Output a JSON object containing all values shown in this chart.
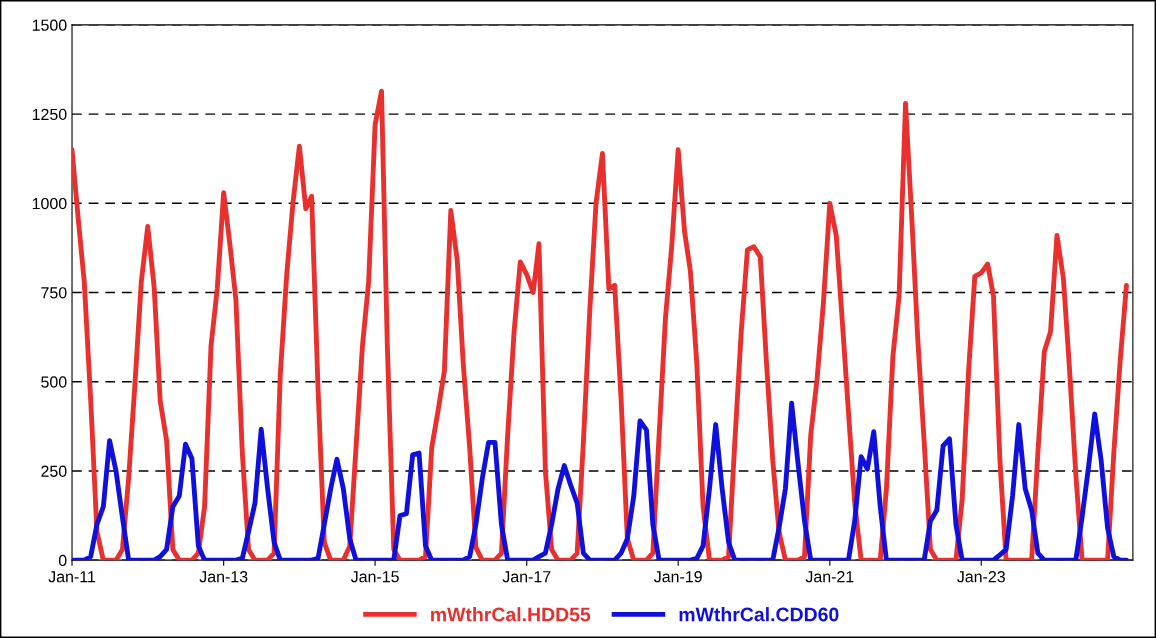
{
  "chart_data": {
    "type": "line",
    "x": [
      "2011-01",
      "2011-02",
      "2011-03",
      "2011-04",
      "2011-05",
      "2011-06",
      "2011-07",
      "2011-08",
      "2011-09",
      "2011-10",
      "2011-11",
      "2011-12",
      "2012-01",
      "2012-02",
      "2012-03",
      "2012-04",
      "2012-05",
      "2012-06",
      "2012-07",
      "2012-08",
      "2012-09",
      "2012-10",
      "2012-11",
      "2012-12",
      "2013-01",
      "2013-02",
      "2013-03",
      "2013-04",
      "2013-05",
      "2013-06",
      "2013-07",
      "2013-08",
      "2013-09",
      "2013-10",
      "2013-11",
      "2013-12",
      "2014-01",
      "2014-02",
      "2014-03",
      "2014-04",
      "2014-05",
      "2014-06",
      "2014-07",
      "2014-08",
      "2014-09",
      "2014-10",
      "2014-11",
      "2014-12",
      "2015-01",
      "2015-02",
      "2015-03",
      "2015-04",
      "2015-05",
      "2015-06",
      "2015-07",
      "2015-08",
      "2015-09",
      "2015-10",
      "2015-11",
      "2015-12",
      "2016-01",
      "2016-02",
      "2016-03",
      "2016-04",
      "2016-05",
      "2016-06",
      "2016-07",
      "2016-08",
      "2016-09",
      "2016-10",
      "2016-11",
      "2016-12",
      "2017-01",
      "2017-02",
      "2017-03",
      "2017-04",
      "2017-05",
      "2017-06",
      "2017-07",
      "2017-08",
      "2017-09",
      "2017-10",
      "2017-11",
      "2017-12",
      "2018-01",
      "2018-02",
      "2018-03",
      "2018-04",
      "2018-05",
      "2018-06",
      "2018-07",
      "2018-08",
      "2018-09",
      "2018-10",
      "2018-11",
      "2018-12",
      "2019-01",
      "2019-02",
      "2019-03",
      "2019-04",
      "2019-05",
      "2019-06",
      "2019-07",
      "2019-08",
      "2019-09",
      "2019-10",
      "2019-11",
      "2019-12",
      "2020-01",
      "2020-02",
      "2020-03",
      "2020-04",
      "2020-05",
      "2020-06",
      "2020-07",
      "2020-08",
      "2020-09",
      "2020-10",
      "2020-11",
      "2020-12",
      "2021-01",
      "2021-02",
      "2021-03",
      "2021-04",
      "2021-05",
      "2021-06",
      "2021-07",
      "2021-08",
      "2021-09",
      "2021-10",
      "2021-11",
      "2021-12",
      "2022-01",
      "2022-02",
      "2022-03",
      "2022-04",
      "2022-05",
      "2022-06",
      "2022-07",
      "2022-08",
      "2022-09",
      "2022-10",
      "2022-11",
      "2022-12",
      "2023-01",
      "2023-02",
      "2023-03",
      "2023-04",
      "2023-05",
      "2023-06",
      "2023-07",
      "2023-08",
      "2023-09",
      "2023-10",
      "2023-11",
      "2023-12",
      "2024-01",
      "2024-02",
      "2024-03",
      "2024-04",
      "2024-05",
      "2024-06",
      "2024-07",
      "2024-08",
      "2024-09",
      "2024-10",
      "2024-11",
      "2024-12"
    ],
    "xlim": [
      "2011-01",
      "2025-01"
    ],
    "xticks": [
      {
        "value": "2011-01",
        "label": "Jan-11"
      },
      {
        "value": "2013-01",
        "label": "Jan-13"
      },
      {
        "value": "2015-01",
        "label": "Jan-15"
      },
      {
        "value": "2017-01",
        "label": "Jan-17"
      },
      {
        "value": "2019-01",
        "label": "Jan-19"
      },
      {
        "value": "2021-01",
        "label": "Jan-21"
      },
      {
        "value": "2023-01",
        "label": "Jan-23"
      }
    ],
    "ylim": [
      0,
      1500
    ],
    "yticks": [
      0,
      250,
      500,
      750,
      1000,
      1250,
      1500
    ],
    "grid": "y",
    "legend": "bottom",
    "line_style": "solid",
    "series": [
      {
        "name": "mWthrCal.HDD55",
        "color": "#e8302e",
        "values": [
          1150,
          950,
          780,
          450,
          80,
          0,
          0,
          0,
          30,
          230,
          500,
          780,
          935,
          765,
          447,
          335,
          30,
          0,
          0,
          0,
          20,
          150,
          600,
          760,
          1030,
          880,
          730,
          300,
          30,
          0,
          0,
          0,
          20,
          520,
          800,
          1000,
          1160,
          985,
          1020,
          480,
          50,
          0,
          0,
          0,
          40,
          315,
          600,
          780,
          1220,
          1314,
          600,
          30,
          0,
          0,
          0,
          0,
          10,
          315,
          420,
          530,
          980,
          840,
          550,
          315,
          35,
          0,
          0,
          0,
          20,
          350,
          640,
          836,
          800,
          750,
          887,
          250,
          30,
          0,
          0,
          0,
          20,
          330,
          700,
          1000,
          1140,
          760,
          770,
          450,
          60,
          0,
          0,
          0,
          20,
          350,
          680,
          880,
          1150,
          920,
          810,
          550,
          150,
          0,
          0,
          0,
          10,
          330,
          640,
          870,
          878,
          850,
          560,
          280,
          80,
          0,
          0,
          0,
          10,
          350,
          510,
          720,
          1000,
          910,
          680,
          415,
          160,
          0,
          0,
          0,
          0,
          200,
          570,
          740,
          1280,
          950,
          620,
          330,
          30,
          0,
          0,
          0,
          0,
          170,
          530,
          795,
          805,
          830,
          740,
          280,
          0,
          0,
          0,
          0,
          0,
          300,
          585,
          640,
          910,
          790,
          540,
          240,
          0,
          0,
          0,
          0,
          0,
          300,
          560,
          770
        ]
      },
      {
        "name": "mWthrCal.CDD60",
        "color": "#1010dd",
        "values": [
          0,
          0,
          0,
          10,
          100,
          150,
          335,
          250,
          120,
          0,
          0,
          0,
          0,
          0,
          10,
          30,
          150,
          180,
          325,
          285,
          40,
          0,
          0,
          0,
          0,
          0,
          0,
          5,
          80,
          160,
          367,
          200,
          50,
          0,
          0,
          0,
          0,
          0,
          0,
          5,
          100,
          200,
          283,
          200,
          60,
          0,
          0,
          0,
          0,
          0,
          0,
          0,
          125,
          130,
          295,
          300,
          40,
          0,
          0,
          0,
          0,
          0,
          0,
          10,
          100,
          230,
          330,
          330,
          100,
          0,
          0,
          0,
          0,
          0,
          10,
          20,
          100,
          200,
          265,
          210,
          160,
          20,
          0,
          0,
          0,
          0,
          0,
          20,
          60,
          180,
          390,
          365,
          100,
          0,
          0,
          0,
          0,
          0,
          0,
          5,
          40,
          200,
          380,
          200,
          50,
          0,
          0,
          0,
          0,
          0,
          0,
          0,
          90,
          200,
          440,
          270,
          110,
          0,
          0,
          0,
          0,
          0,
          0,
          0,
          110,
          290,
          255,
          360,
          150,
          0,
          0,
          0,
          0,
          0,
          0,
          0,
          110,
          140,
          320,
          340,
          100,
          0,
          0,
          0,
          0,
          0,
          0,
          15,
          30,
          180,
          380,
          200,
          140,
          20,
          0,
          0,
          0,
          0,
          0,
          0,
          120,
          260,
          410,
          280,
          90,
          10,
          0,
          0
        ]
      }
    ]
  }
}
